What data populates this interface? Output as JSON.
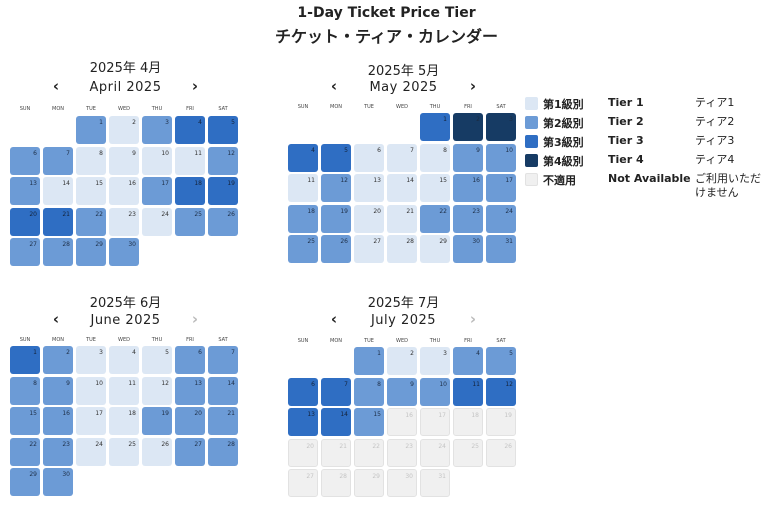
{
  "header": {
    "title": "1-Day Ticket Price Tier",
    "subtitle": "チケット・ティア・カレンダー"
  },
  "weekdays": [
    "SUN",
    "MON",
    "TUE",
    "WED",
    "THU",
    "FRI",
    "SAT"
  ],
  "legend": [
    {
      "ja": "第1級別",
      "en": "Tier 1",
      "kana": "ティア1",
      "color": "#dce7f4"
    },
    {
      "ja": "第2級別",
      "en": "Tier 2",
      "kana": "ティア2",
      "color": "#6c9bd6"
    },
    {
      "ja": "第3級別",
      "en": "Tier 3",
      "kana": "ティア3",
      "color": "#2f6ec3"
    },
    {
      "ja": "第4級別",
      "en": "Tier 4",
      "kana": "ティア4",
      "color": "#163b64"
    },
    {
      "ja": "不適用",
      "en": "Not Available",
      "kana": "ご利用いただけません",
      "color": "#f0f0f0"
    }
  ],
  "calendars": [
    {
      "title_ja": "2025年 4月",
      "title_en": "April 2025",
      "next_enabled": true,
      "weeks": [
        [
          null,
          null,
          {
            "day": 1,
            "tier": 1
          },
          {
            "day": 2,
            "tier": 0
          },
          {
            "day": 3,
            "tier": 1
          },
          {
            "day": 4,
            "tier": 2
          },
          {
            "day": 5,
            "tier": 2
          }
        ],
        [
          {
            "day": 6,
            "tier": 1
          },
          {
            "day": 7,
            "tier": 1
          },
          {
            "day": 8,
            "tier": 0
          },
          {
            "day": 9,
            "tier": 0
          },
          {
            "day": 10,
            "tier": 0
          },
          {
            "day": 11,
            "tier": 0
          },
          {
            "day": 12,
            "tier": 1
          }
        ],
        [
          {
            "day": 13,
            "tier": 1
          },
          {
            "day": 14,
            "tier": 0
          },
          {
            "day": 15,
            "tier": 0
          },
          {
            "day": 16,
            "tier": 0
          },
          {
            "day": 17,
            "tier": 1
          },
          {
            "day": 18,
            "tier": 2
          },
          {
            "day": 19,
            "tier": 2
          }
        ],
        [
          {
            "day": 20,
            "tier": 2
          },
          {
            "day": 21,
            "tier": 2
          },
          {
            "day": 22,
            "tier": 1
          },
          {
            "day": 23,
            "tier": 0
          },
          {
            "day": 24,
            "tier": 0
          },
          {
            "day": 25,
            "tier": 1
          },
          {
            "day": 26,
            "tier": 1
          }
        ],
        [
          {
            "day": 27,
            "tier": 1
          },
          {
            "day": 28,
            "tier": 1
          },
          {
            "day": 29,
            "tier": 1
          },
          {
            "day": 30,
            "tier": 1
          },
          null,
          null,
          null
        ]
      ]
    },
    {
      "title_ja": "2025年 5月",
      "title_en": "May 2025",
      "next_enabled": true,
      "weeks": [
        [
          null,
          null,
          null,
          null,
          {
            "day": 1,
            "tier": 2
          },
          {
            "day": 2,
            "tier": 3
          },
          {
            "day": 3,
            "tier": 3
          }
        ],
        [
          {
            "day": 4,
            "tier": 2
          },
          {
            "day": 5,
            "tier": 2
          },
          {
            "day": 6,
            "tier": 0
          },
          {
            "day": 7,
            "tier": 0
          },
          {
            "day": 8,
            "tier": 0
          },
          {
            "day": 9,
            "tier": 1
          },
          {
            "day": 10,
            "tier": 1
          }
        ],
        [
          {
            "day": 11,
            "tier": 0
          },
          {
            "day": 12,
            "tier": 1
          },
          {
            "day": 13,
            "tier": 0
          },
          {
            "day": 14,
            "tier": 0
          },
          {
            "day": 15,
            "tier": 0
          },
          {
            "day": 16,
            "tier": 1
          },
          {
            "day": 17,
            "tier": 1
          }
        ],
        [
          {
            "day": 18,
            "tier": 1
          },
          {
            "day": 19,
            "tier": 1
          },
          {
            "day": 20,
            "tier": 0
          },
          {
            "day": 21,
            "tier": 0
          },
          {
            "day": 22,
            "tier": 1
          },
          {
            "day": 23,
            "tier": 1
          },
          {
            "day": 24,
            "tier": 1
          }
        ],
        [
          {
            "day": 25,
            "tier": 1
          },
          {
            "day": 26,
            "tier": 1
          },
          {
            "day": 27,
            "tier": 0
          },
          {
            "day": 28,
            "tier": 0
          },
          {
            "day": 29,
            "tier": 0
          },
          {
            "day": 30,
            "tier": 1
          },
          {
            "day": 31,
            "tier": 1
          }
        ]
      ]
    },
    {
      "title_ja": "2025年 6月",
      "title_en": "June 2025",
      "next_enabled": false,
      "weeks": [
        [
          {
            "day": 1,
            "tier": 2
          },
          {
            "day": 2,
            "tier": 1
          },
          {
            "day": 3,
            "tier": 0
          },
          {
            "day": 4,
            "tier": 0
          },
          {
            "day": 5,
            "tier": 0
          },
          {
            "day": 6,
            "tier": 1
          },
          {
            "day": 7,
            "tier": 1
          }
        ],
        [
          {
            "day": 8,
            "tier": 1
          },
          {
            "day": 9,
            "tier": 1
          },
          {
            "day": 10,
            "tier": 0
          },
          {
            "day": 11,
            "tier": 0
          },
          {
            "day": 12,
            "tier": 0
          },
          {
            "day": 13,
            "tier": 1
          },
          {
            "day": 14,
            "tier": 1
          }
        ],
        [
          {
            "day": 15,
            "tier": 1
          },
          {
            "day": 16,
            "tier": 1
          },
          {
            "day": 17,
            "tier": 0
          },
          {
            "day": 18,
            "tier": 0
          },
          {
            "day": 19,
            "tier": 1
          },
          {
            "day": 20,
            "tier": 1
          },
          {
            "day": 21,
            "tier": 1
          }
        ],
        [
          {
            "day": 22,
            "tier": 1
          },
          {
            "day": 23,
            "tier": 1
          },
          {
            "day": 24,
            "tier": 0
          },
          {
            "day": 25,
            "tier": 0
          },
          {
            "day": 26,
            "tier": 0
          },
          {
            "day": 27,
            "tier": 1
          },
          {
            "day": 28,
            "tier": 1
          }
        ],
        [
          {
            "day": 29,
            "tier": 1
          },
          {
            "day": 30,
            "tier": 1
          },
          null,
          null,
          null,
          null,
          null
        ]
      ]
    },
    {
      "title_ja": "2025年 7月",
      "title_en": "July 2025",
      "next_enabled": false,
      "weeks": [
        [
          null,
          null,
          {
            "day": 1,
            "tier": 1
          },
          {
            "day": 2,
            "tier": 0
          },
          {
            "day": 3,
            "tier": 0
          },
          {
            "day": 4,
            "tier": 1
          },
          {
            "day": 5,
            "tier": 1
          }
        ],
        [
          {
            "day": 6,
            "tier": 2
          },
          {
            "day": 7,
            "tier": 2
          },
          {
            "day": 8,
            "tier": 1
          },
          {
            "day": 9,
            "tier": 1
          },
          {
            "day": 10,
            "tier": 1
          },
          {
            "day": 11,
            "tier": 2
          },
          {
            "day": 12,
            "tier": 2
          }
        ],
        [
          {
            "day": 13,
            "tier": 2
          },
          {
            "day": 14,
            "tier": 2
          },
          {
            "day": 15,
            "tier": 1
          },
          {
            "day": 16,
            "tier": 4
          },
          {
            "day": 17,
            "tier": 4
          },
          {
            "day": 18,
            "tier": 4
          },
          {
            "day": 19,
            "tier": 4
          }
        ],
        [
          {
            "day": 20,
            "tier": 4
          },
          {
            "day": 21,
            "tier": 4
          },
          {
            "day": 22,
            "tier": 4
          },
          {
            "day": 23,
            "tier": 4
          },
          {
            "day": 24,
            "tier": 4
          },
          {
            "day": 25,
            "tier": 4
          },
          {
            "day": 26,
            "tier": 4
          }
        ],
        [
          {
            "day": 27,
            "tier": 4
          },
          {
            "day": 28,
            "tier": 4
          },
          {
            "day": 29,
            "tier": 4
          },
          {
            "day": 30,
            "tier": 4
          },
          {
            "day": 31,
            "tier": 4
          },
          null,
          null
        ]
      ]
    }
  ]
}
